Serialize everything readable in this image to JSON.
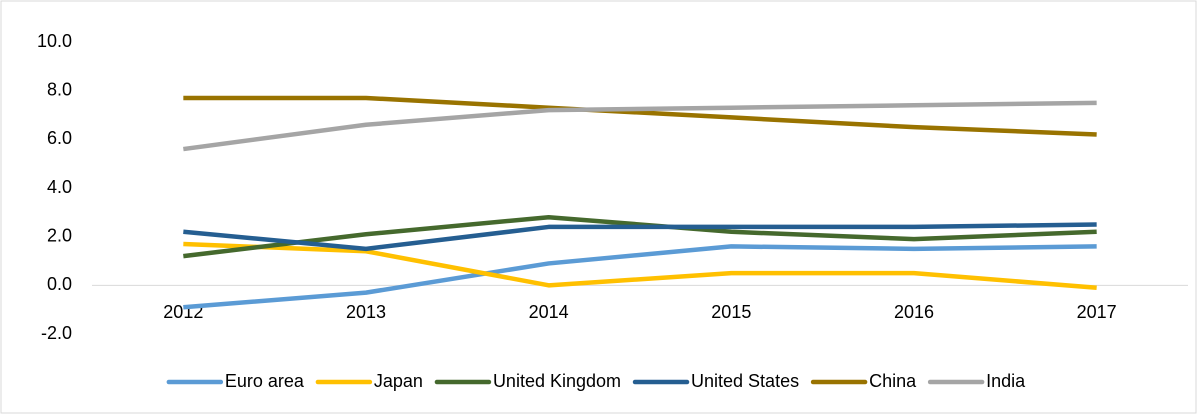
{
  "chart_data": {
    "type": "line",
    "categories": [
      "2012",
      "2013",
      "2014",
      "2015",
      "2016",
      "2017"
    ],
    "series": [
      {
        "name": "Euro area",
        "color": "#5b9bd5",
        "values": [
          -0.9,
          -0.3,
          0.9,
          1.6,
          1.5,
          1.6
        ]
      },
      {
        "name": "Japan",
        "color": "#ffc000",
        "values": [
          1.7,
          1.4,
          0.0,
          0.5,
          0.5,
          -0.1
        ]
      },
      {
        "name": "United Kingdom",
        "color": "#45692d",
        "values": [
          1.2,
          2.1,
          2.8,
          2.2,
          1.9,
          2.2
        ]
      },
      {
        "name": "United States",
        "color": "#255e91",
        "values": [
          2.2,
          1.5,
          2.4,
          2.4,
          2.4,
          2.5
        ]
      },
      {
        "name": "China",
        "color": "#997300",
        "values": [
          7.7,
          7.7,
          7.3,
          6.9,
          6.5,
          6.2
        ]
      },
      {
        "name": "India",
        "color": "#a5a5a5",
        "values": [
          5.6,
          6.6,
          7.2,
          7.3,
          7.4,
          7.5
        ]
      }
    ],
    "ylim": [
      -2,
      10
    ],
    "yticks": [
      {
        "value": -2,
        "label": "-2.0"
      },
      {
        "value": 0,
        "label": "0.0"
      },
      {
        "value": 2,
        "label": "2.0"
      },
      {
        "value": 4,
        "label": "4.0"
      },
      {
        "value": 6,
        "label": "6.0"
      },
      {
        "value": 8,
        "label": "8.0"
      },
      {
        "value": 10,
        "label": "10.0"
      }
    ],
    "legend": "bottom"
  }
}
